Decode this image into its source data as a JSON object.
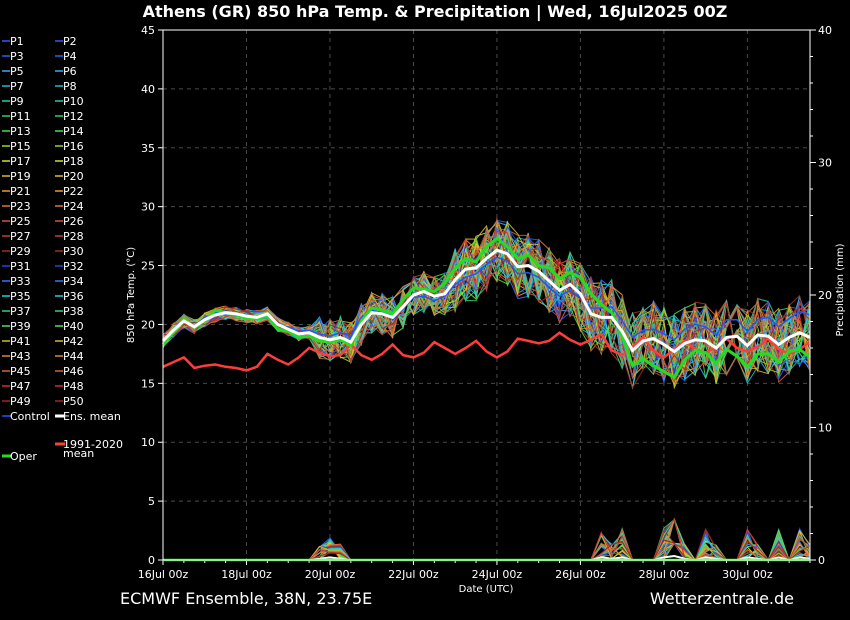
{
  "title": "Athens  (GR)  850 hPa Temp. & Precipitation | Wed, 16Jul2025 00Z",
  "footer_left": "ECMWF Ensemble, 38N, 23.75E",
  "footer_right": "Wetterzentrale.de",
  "colors": {
    "background": "#000000",
    "control": "#2255ff",
    "mean": "#ffffff",
    "clim": "#ff3c3c",
    "oper": "#22dd22"
  },
  "chart_data": {
    "type": "line",
    "xlabel": "Date (UTC)",
    "ylabel_left": "850 hPa Temp. (°C)",
    "ylabel_right": "Precipitation (mm)",
    "xlim": [
      "16Jul 00z",
      "31Jul 06z"
    ],
    "ylim_left": [
      0,
      45
    ],
    "ylim_right": [
      0,
      40
    ],
    "yticks_left": [
      "0",
      "5",
      "10",
      "15",
      "20",
      "25",
      "30",
      "35",
      "40",
      "45"
    ],
    "yticks_right": [
      "0",
      "10",
      "20",
      "30",
      "40"
    ],
    "xticks": [
      "16Jul 00z",
      "18Jul 00z",
      "20Jul 00z",
      "22Jul 00z",
      "24Jul 00z",
      "26Jul 00z",
      "28Jul 00z",
      "30Jul 00z"
    ],
    "grid": true,
    "legend_position": "left",
    "time_step_hours": 6,
    "legend": {
      "perturbed": [
        "P1",
        "P2",
        "P3",
        "P4",
        "P5",
        "P6",
        "P7",
        "P8",
        "P9",
        "P10",
        "P11",
        "P12",
        "P13",
        "P14",
        "P15",
        "P16",
        "P17",
        "P18",
        "P19",
        "P20",
        "P21",
        "P22",
        "P23",
        "P24",
        "P25",
        "P26",
        "P27",
        "P28",
        "P29",
        "P30",
        "P31",
        "P32",
        "P33",
        "P34",
        "P35",
        "P36",
        "P37",
        "P38",
        "P39",
        "P40",
        "P41",
        "P42",
        "P43",
        "P44",
        "P45",
        "P46",
        "P47",
        "P48",
        "P49",
        "P50"
      ],
      "control": "Control",
      "mean": "Ens. mean",
      "oper": "Oper",
      "clim": "1991-2020\nmean"
    },
    "ensemble_mean_temp": [
      18.6,
      19.5,
      20.3,
      19.8,
      20.4,
      20.8,
      21.0,
      20.9,
      20.7,
      20.6,
      20.9,
      20.0,
      19.6,
      19.2,
      19.3,
      18.9,
      18.7,
      18.9,
      18.5,
      20.0,
      21.0,
      20.9,
      20.6,
      21.5,
      22.5,
      22.8,
      22.4,
      22.6,
      23.8,
      24.7,
      24.8,
      25.6,
      26.3,
      26.0,
      24.9,
      25.0,
      24.5,
      23.7,
      22.9,
      23.4,
      22.6,
      20.9,
      20.6,
      20.6,
      19.4,
      17.8,
      18.6,
      18.8,
      18.3,
      17.7,
      18.4,
      18.7,
      18.6,
      18.0,
      18.9,
      19.0,
      18.2,
      19.1,
      19.0,
      18.3,
      18.9,
      19.3,
      18.9
    ],
    "oper_temp": [
      18.3,
      19.3,
      20.5,
      19.7,
      20.3,
      21.2,
      21.0,
      20.8,
      20.5,
      20.5,
      20.7,
      19.6,
      19.4,
      18.9,
      19.0,
      18.6,
      18.5,
      18.7,
      18.2,
      20.3,
      21.4,
      21.2,
      20.9,
      22.1,
      23.1,
      23.0,
      22.8,
      23.5,
      24.8,
      25.6,
      25.3,
      26.6,
      27.3,
      26.6,
      25.6,
      25.9,
      25.0,
      24.8,
      23.9,
      24.4,
      24.0,
      22.6,
      21.7,
      21.0,
      19.0,
      16.5,
      17.1,
      16.5,
      16.0,
      15.5,
      17.0,
      17.8,
      17.6,
      16.7,
      17.9,
      17.3,
      16.4,
      17.5,
      17.5,
      16.8,
      17.7,
      17.9,
      17.2
    ],
    "control_temp": [
      18.5,
      19.4,
      20.3,
      19.9,
      20.6,
      21.0,
      21.0,
      20.8,
      20.6,
      20.7,
      20.9,
      19.9,
      19.8,
      19.4,
      19.5,
      19.2,
      19.0,
      19.3,
      19.0,
      20.6,
      21.2,
      21.1,
      20.6,
      21.3,
      22.3,
      22.4,
      22.0,
      22.4,
      23.4,
      24.0,
      24.3,
      25.1,
      25.7,
      25.4,
      24.3,
      24.4,
      24.0,
      23.1,
      22.4,
      22.9,
      22.3,
      21.4,
      21.4,
      21.5,
      20.3,
      18.9,
      19.5,
      19.6,
      19.2,
      18.7,
      19.6,
      20.0,
      19.8,
      19.1,
      20.4,
      20.4,
      19.4,
      20.4,
      20.6,
      19.8,
      20.5,
      21.1,
      20.8
    ],
    "clim_temp": [
      16.4,
      16.8,
      17.2,
      16.3,
      16.5,
      16.6,
      16.4,
      16.3,
      16.1,
      16.4,
      17.5,
      17.0,
      16.6,
      17.2,
      18.0,
      17.6,
      17.3,
      17.4,
      18.3,
      17.4,
      17.0,
      17.5,
      18.3,
      17.4,
      17.2,
      17.6,
      18.5,
      18.0,
      17.5,
      18.0,
      18.6,
      17.7,
      17.2,
      17.7,
      18.8,
      18.6,
      18.4,
      18.6,
      19.3,
      18.7,
      18.3,
      18.7,
      19.2,
      17.8,
      17.4,
      18.1,
      18.9,
      17.8,
      17.2,
      17.9,
      18.6,
      17.9,
      17.6,
      18.1,
      18.8,
      18.0,
      17.7,
      18.1,
      18.8,
      17.9,
      17.5,
      17.9,
      18.5
    ],
    "mean_precip": [
      0,
      0,
      0,
      0,
      0,
      0,
      0,
      0,
      0,
      0,
      0,
      0,
      0,
      0,
      0,
      0.1,
      0.2,
      0.1,
      0,
      0,
      0,
      0,
      0,
      0,
      0,
      0,
      0,
      0,
      0,
      0,
      0,
      0,
      0,
      0,
      0,
      0,
      0,
      0,
      0,
      0,
      0,
      0,
      0.2,
      0.1,
      0.2,
      0,
      0,
      0,
      0.2,
      0.3,
      0.1,
      0,
      0.2,
      0.1,
      0,
      0,
      0.2,
      0.1,
      0,
      0.2,
      0,
      0.2,
      0.1
    ]
  }
}
